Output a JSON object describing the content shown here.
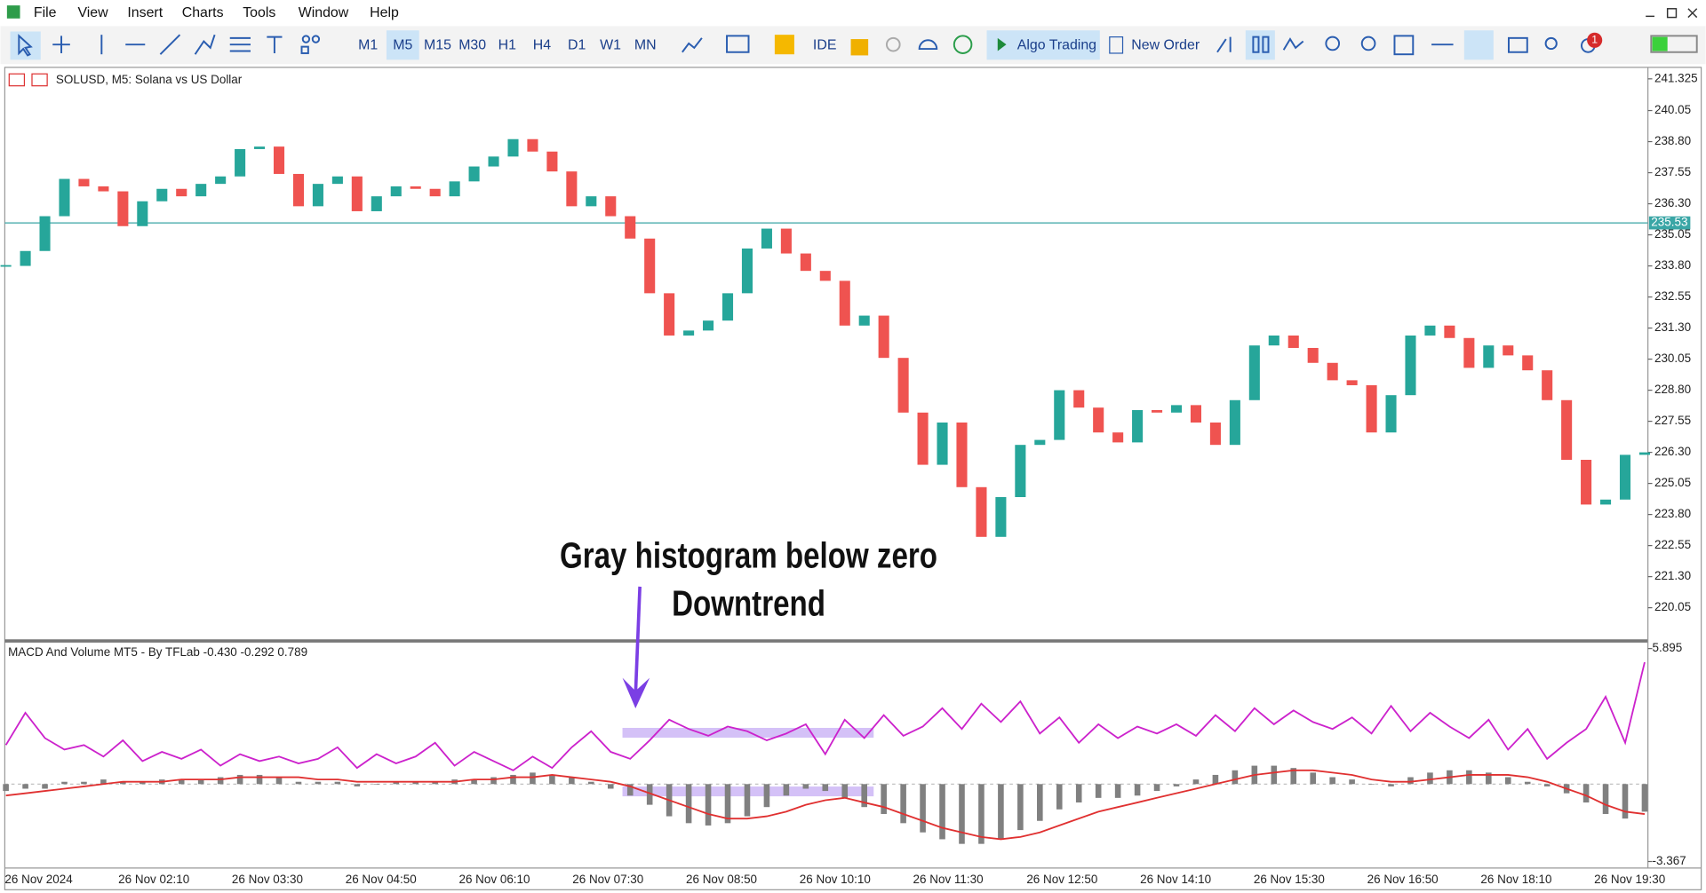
{
  "menu": [
    "File",
    "View",
    "Insert",
    "Charts",
    "Tools",
    "Window",
    "Help"
  ],
  "toolbar": {
    "timeframes": [
      "M1",
      "M5",
      "M15",
      "M30",
      "H1",
      "H4",
      "D1",
      "W1",
      "MN"
    ],
    "ide": "IDE",
    "algo_trading": "Algo Trading",
    "new_order": "New Order",
    "badge": "1"
  },
  "chart_data": [
    {
      "type": "candlestick",
      "title": "SOLUSD, M5:  Solana vs US Dollar",
      "x_labels": [
        "26 Nov 2024",
        "26 Nov 02:10",
        "26 Nov 03:30",
        "26 Nov 04:50",
        "26 Nov 06:10",
        "26 Nov 07:30",
        "26 Nov 08:50",
        "26 Nov 10:10",
        "26 Nov 11:30",
        "26 Nov 12:50",
        "26 Nov 14:10",
        "26 Nov 15:30",
        "26 Nov 16:50",
        "26 Nov 18:10",
        "26 Nov 19:30"
      ],
      "close": [
        233.8,
        234.4,
        235.8,
        237.3,
        237.0,
        236.8,
        235.4,
        236.4,
        236.9,
        236.6,
        237.1,
        237.4,
        238.5,
        238.6,
        237.5,
        236.2,
        237.1,
        237.4,
        236.0,
        236.6,
        237.0,
        236.9,
        236.6,
        237.2,
        237.8,
        238.2,
        238.9,
        238.4,
        237.6,
        236.2,
        236.6,
        235.8,
        234.9,
        232.7,
        231.0,
        231.2,
        231.6,
        232.7,
        234.5,
        235.3,
        234.3,
        233.6,
        233.2,
        231.4,
        231.8,
        230.1,
        227.9,
        225.8,
        227.5,
        224.9,
        222.9,
        224.5,
        226.6,
        226.8,
        228.8,
        228.1,
        227.1,
        226.7,
        228.0,
        227.9,
        228.2,
        227.5,
        226.6,
        228.4,
        230.6,
        231.0,
        230.5,
        229.9,
        229.2,
        229.0,
        227.1,
        228.6,
        231.0,
        231.4,
        230.9,
        229.7,
        230.6,
        230.2,
        229.6,
        228.4,
        226.0,
        224.2,
        224.4,
        226.2,
        226.3
      ],
      "up_color": "#26a69a",
      "down_color": "#ef5350",
      "current_price": 235.53,
      "price_line_color": "#3aa6a6",
      "ylim": [
        218.8,
        241.7
      ],
      "yticks": [
        241.325,
        240.05,
        {
          "value": 238.8,
          "label": "238.80"
        },
        237.55,
        {
          "value": 236.3,
          "label": "236.30"
        },
        235.05,
        {
          "value": 233.8,
          "label": "233.80"
        },
        232.55,
        {
          "value": 231.3,
          "label": "231.30"
        },
        230.05,
        {
          "value": 228.8,
          "label": "228.80"
        },
        227.55,
        {
          "value": 226.3,
          "label": "226.30"
        },
        225.05,
        {
          "value": 223.8,
          "label": "223.80"
        },
        222.55,
        {
          "value": 221.3,
          "label": "221.30"
        },
        220.05
      ]
    },
    {
      "type": "macd",
      "title": "MACD And Volume MT5 - By TFLab -0.430 -0.292 0.789",
      "annotations": [
        "Gray histogram below zero",
        "Downtrend"
      ],
      "ylim": [
        -3.367,
        5.895
      ],
      "yticks": [
        -3.367,
        5.895
      ],
      "histogram": {
        "color": "#808080",
        "values": [
          -0.3,
          -0.2,
          -0.2,
          0.1,
          0.1,
          0.2,
          0.1,
          0.1,
          0.2,
          0.2,
          0.2,
          0.3,
          0.4,
          0.4,
          0.3,
          0.1,
          0.1,
          0.1,
          -0.1,
          0.0,
          0.1,
          0.1,
          0.1,
          0.2,
          0.2,
          0.3,
          0.4,
          0.5,
          0.4,
          0.3,
          0.1,
          -0.2,
          -0.5,
          -0.9,
          -1.4,
          -1.7,
          -1.8,
          -1.7,
          -1.4,
          -1.0,
          -0.5,
          -0.2,
          -0.3,
          -0.6,
          -1.0,
          -1.3,
          -1.7,
          -2.1,
          -2.4,
          -2.6,
          -2.6,
          -2.4,
          -2.0,
          -1.6,
          -1.1,
          -0.8,
          -0.6,
          -0.6,
          -0.5,
          -0.3,
          -0.1,
          0.2,
          0.4,
          0.6,
          0.8,
          0.8,
          0.7,
          0.5,
          0.3,
          0.2,
          0.0,
          -0.1,
          0.3,
          0.5,
          0.6,
          0.6,
          0.5,
          0.3,
          0.1,
          -0.1,
          -0.4,
          -0.8,
          -1.3,
          -1.5,
          -1.2
        ]
      },
      "series": [
        {
          "color": "#cc22cc",
          "values": [
            1.7,
            3.1,
            2.0,
            1.5,
            1.7,
            1.2,
            1.9,
            1.0,
            1.4,
            1.1,
            1.5,
            0.8,
            1.3,
            1.0,
            1.2,
            0.9,
            1.1,
            1.6,
            0.7,
            1.3,
            0.9,
            1.2,
            1.8,
            0.8,
            1.4,
            1.0,
            0.6,
            1.2,
            0.7,
            1.6,
            2.3,
            1.4,
            1.1,
            1.9,
            2.8,
            2.4,
            2.1,
            2.5,
            2.3,
            1.9,
            2.2,
            2.6,
            1.3,
            2.8,
            2.0,
            3.0,
            2.1,
            2.5,
            3.3,
            2.4,
            3.5,
            2.7,
            3.6,
            2.2,
            2.9,
            1.8,
            2.6,
            2.0,
            2.5,
            2.2,
            2.6,
            2.1,
            3.0,
            2.3,
            3.3,
            2.6,
            3.2,
            2.7,
            2.4,
            2.9,
            2.2,
            3.4,
            2.3,
            3.1,
            2.5,
            2.0,
            2.8,
            1.5,
            2.4,
            1.1,
            1.8,
            2.4,
            3.8,
            1.8,
            5.3
          ]
        },
        {
          "color": "#e03030",
          "values": [
            -0.5,
            -0.4,
            -0.3,
            -0.2,
            -0.1,
            0.0,
            0.1,
            0.1,
            0.1,
            0.2,
            0.2,
            0.2,
            0.3,
            0.3,
            0.3,
            0.3,
            0.2,
            0.2,
            0.1,
            0.1,
            0.1,
            0.1,
            0.1,
            0.1,
            0.2,
            0.2,
            0.3,
            0.3,
            0.4,
            0.3,
            0.2,
            0.1,
            -0.1,
            -0.4,
            -0.7,
            -1.0,
            -1.3,
            -1.5,
            -1.5,
            -1.4,
            -1.2,
            -0.9,
            -0.7,
            -0.6,
            -0.8,
            -1.0,
            -1.3,
            -1.6,
            -1.9,
            -2.1,
            -2.3,
            -2.4,
            -2.3,
            -2.1,
            -1.8,
            -1.5,
            -1.2,
            -1.0,
            -0.8,
            -0.6,
            -0.4,
            -0.2,
            0.0,
            0.2,
            0.4,
            0.5,
            0.6,
            0.6,
            0.5,
            0.4,
            0.2,
            0.1,
            0.1,
            0.2,
            0.3,
            0.4,
            0.4,
            0.4,
            0.3,
            0.1,
            -0.2,
            -0.5,
            -0.9,
            -1.2,
            -1.3
          ]
        }
      ]
    }
  ]
}
